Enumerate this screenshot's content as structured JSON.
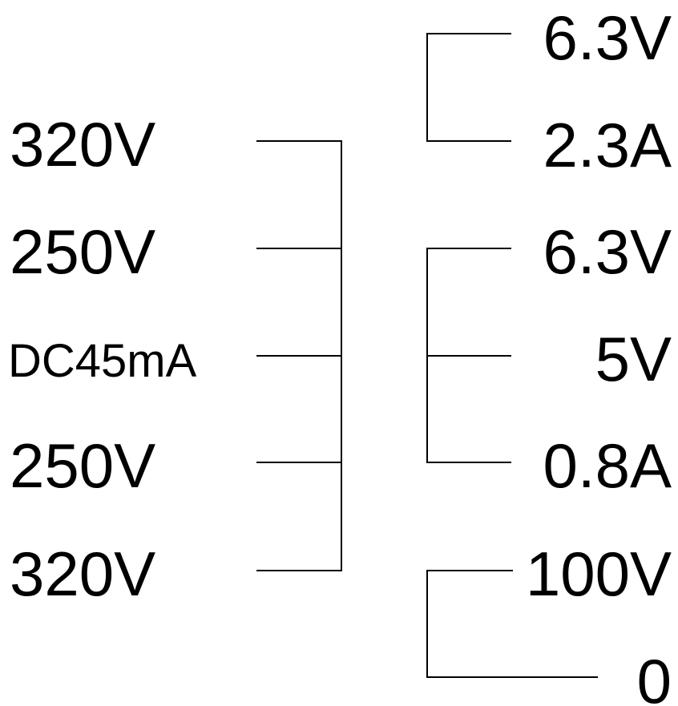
{
  "colors": {
    "background": "#ffffff",
    "ink": "#000000"
  },
  "secondary": {
    "taps": [
      "320V",
      "250V",
      "DC45mA",
      "250V",
      "320V"
    ]
  },
  "heater_1": {
    "voltage": "6.3V",
    "current": "2.3A"
  },
  "heater_2": {
    "voltage": "6.3V",
    "rectifier": "5V",
    "current": "0.8A"
  },
  "primary": {
    "voltage": "100V",
    "zero": "0"
  }
}
